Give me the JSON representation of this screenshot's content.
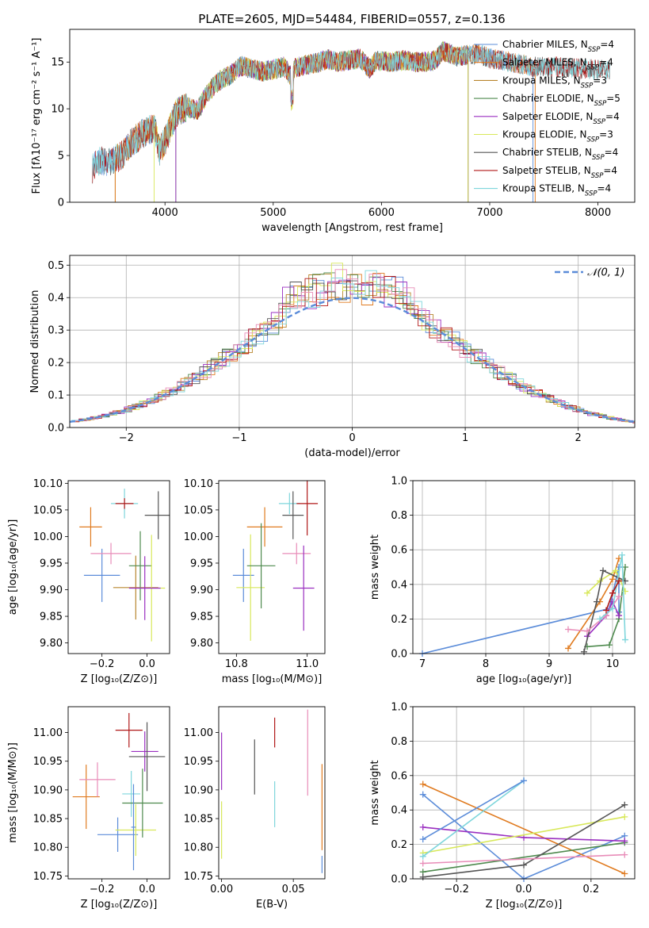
{
  "title": "PLATE=2605, MJD=54484, FIBERID=0557, z=0.136",
  "colors": {
    "Chabrier MILES": "#5b8cd9",
    "Salpeter MILES": "#e07b20",
    "Kroupa MILES": "#b8862e",
    "Chabrier ELODIE": "#4e8a4e",
    "Salpeter ELODIE": "#9a2fc0",
    "Kroupa ELODIE": "#d8e85a",
    "Chabrier STELIB": "#555555",
    "Salpeter STELIB": "#b01818",
    "Kroupa STELIB": "#7fd6dc",
    "pink": "#e88cb8"
  },
  "legend": {
    "items": [
      {
        "text": "Chabrier MILES, N",
        "sub": "SSP",
        "tail": "=4",
        "color": "#5b8cd9"
      },
      {
        "text": "Salpeter MILES, N",
        "sub": "SSP",
        "tail": "=4",
        "color": "#e07b20"
      },
      {
        "text": "Kroupa MILES, N",
        "sub": "SSP",
        "tail": "=3",
        "color": "#b8862e"
      },
      {
        "text": "Chabrier ELODIE, N",
        "sub": "SSP",
        "tail": "=5",
        "color": "#4e8a4e"
      },
      {
        "text": "Salpeter ELODIE, N",
        "sub": "SSP",
        "tail": "=4",
        "color": "#9a2fc0"
      },
      {
        "text": "Kroupa ELODIE, N",
        "sub": "SSP",
        "tail": "=3",
        "color": "#d8e85a"
      },
      {
        "text": "Chabrier STELIB, N",
        "sub": "SSP",
        "tail": "=4",
        "color": "#555555"
      },
      {
        "text": "Salpeter STELIB, N",
        "sub": "SSP",
        "tail": "=4",
        "color": "#b01818"
      },
      {
        "text": "Kroupa STELIB, N",
        "sub": "SSP",
        "tail": "=4",
        "color": "#7fd6dc"
      }
    ]
  },
  "chart_data": [
    {
      "id": "spectrum",
      "type": "line",
      "title": "PLATE=2605, MJD=54484, FIBERID=0557, z=0.136",
      "xlabel": "wavelength [Angstrom, rest frame]",
      "ylabel": "Flux [fλ10⁻¹⁷ erg cm⁻² s⁻¹ A⁻¹]",
      "xlim": [
        3120,
        8340
      ],
      "ylim": [
        0,
        18.5
      ],
      "xticks": [
        4000,
        5000,
        6000,
        7000,
        8000
      ],
      "yticks": [
        0,
        5,
        10,
        15
      ],
      "x_range": [
        3330,
        8110
      ],
      "envelope": [
        [
          3330,
          3.6
        ],
        [
          3400,
          4.5
        ],
        [
          3500,
          4.3
        ],
        [
          3600,
          5.0
        ],
        [
          3700,
          6.5
        ],
        [
          3800,
          7.4
        ],
        [
          3900,
          8.0
        ],
        [
          3950,
          5.5
        ],
        [
          4000,
          6.5
        ],
        [
          4100,
          9.5
        ],
        [
          4200,
          10.2
        ],
        [
          4300,
          9.8
        ],
        [
          4400,
          11.8
        ],
        [
          4500,
          13.0
        ],
        [
          4600,
          13.6
        ],
        [
          4700,
          14.6
        ],
        [
          4800,
          14.3
        ],
        [
          4900,
          14.0
        ],
        [
          5000,
          14.2
        ],
        [
          5100,
          14.5
        ],
        [
          5175,
          13.3
        ],
        [
          5200,
          14.4
        ],
        [
          5300,
          14.7
        ],
        [
          5400,
          14.9
        ],
        [
          5500,
          15.3
        ],
        [
          5600,
          15.0
        ],
        [
          5700,
          15.2
        ],
        [
          5800,
          15.4
        ],
        [
          5890,
          14.3
        ],
        [
          5950,
          15.1
        ],
        [
          6100,
          15.0
        ],
        [
          6200,
          15.2
        ],
        [
          6300,
          15.0
        ],
        [
          6400,
          15.0
        ],
        [
          6500,
          15.2
        ],
        [
          6563,
          16.2
        ],
        [
          6700,
          15.6
        ],
        [
          6800,
          15.8
        ],
        [
          6900,
          15.9
        ],
        [
          7000,
          15.4
        ],
        [
          7200,
          15.0
        ],
        [
          7400,
          14.5
        ],
        [
          7600,
          14.5
        ],
        [
          7800,
          14.3
        ],
        [
          8000,
          14.2
        ],
        [
          8110,
          14.1
        ]
      ],
      "series": [
        {
          "name": "Chabrier MILES, N_SSP=4",
          "range": [
            3330,
            7400
          ]
        },
        {
          "name": "Salpeter MILES, N_SSP=4",
          "range": [
            3540,
            7420
          ]
        },
        {
          "name": "Kroupa MILES, N_SSP=3",
          "range": [
            3540,
            6800
          ]
        },
        {
          "name": "Chabrier ELODIE, N_SSP=5",
          "range": [
            4100,
            6800
          ]
        },
        {
          "name": "Salpeter ELODIE, N_SSP=4",
          "range": [
            4100,
            6800
          ]
        },
        {
          "name": "Kroupa ELODIE, N_SSP=3",
          "range": [
            3900,
            6800
          ]
        },
        {
          "name": "Chabrier STELIB, N_SSP=4",
          "range": [
            3330,
            8110
          ]
        },
        {
          "name": "Salpeter STELIB, N_SSP=4",
          "range": [
            3330,
            8110
          ]
        },
        {
          "name": "Kroupa STELIB, N_SSP=4",
          "range": [
            3330,
            8110
          ]
        }
      ]
    },
    {
      "id": "residuals",
      "type": "line",
      "xlabel": "(data-model)/error",
      "ylabel": "Normed distribution",
      "xlim": [
        -2.5,
        2.5
      ],
      "ylim": [
        0,
        0.53
      ],
      "xticks": [
        -2,
        -1,
        0,
        1,
        2
      ],
      "yticks": [
        0.0,
        0.1,
        0.2,
        0.3,
        0.4,
        0.5
      ],
      "grid": true,
      "legend_label": "𝒩(0, 1)",
      "legend_position": "top-right",
      "gaussian": {
        "mu": 0,
        "sigma": 1
      },
      "bin_width": 0.1
    },
    {
      "id": "age_vs_Z",
      "type": "scatter",
      "xlabel": "Z [log₁₀(Z/Z⊙)]",
      "ylabel": "age  [log₁₀(age/yr)]",
      "xlim": [
        -0.35,
        0.1
      ],
      "ylim": [
        9.78,
        10.105
      ],
      "xticks": [
        -0.2,
        0.0
      ],
      "xticklabels": [
        "−0.2",
        "0.0"
      ],
      "yticks": [
        9.8,
        9.85,
        9.9,
        9.95,
        10.0,
        10.05,
        10.1
      ],
      "points": [
        {
          "x": -0.25,
          "xerr": 0.05,
          "y": 10.018,
          "yerr": 0.037,
          "color": "#e07b20"
        },
        {
          "x": -0.2,
          "xerr": 0.08,
          "y": 9.927,
          "yerr": 0.05,
          "color": "#5b8cd9"
        },
        {
          "x": -0.16,
          "xerr": 0.09,
          "y": 9.968,
          "yerr": 0.02,
          "color": "#e88cb8"
        },
        {
          "x": -0.1,
          "xerr": 0.06,
          "y": 10.062,
          "yerr": 0.028,
          "color": "#7fd6dc"
        },
        {
          "x": -0.05,
          "xerr": 0.1,
          "y": 9.904,
          "yerr": 0.06,
          "color": "#b8862e"
        },
        {
          "x": -0.03,
          "xerr": 0.05,
          "y": 9.945,
          "yerr": 0.065,
          "color": "#4e8a4e"
        },
        {
          "x": 0.02,
          "xerr": 0.06,
          "y": 9.903,
          "yerr": 0.1,
          "color": "#d8e85a"
        },
        {
          "x": 0.05,
          "xerr": 0.06,
          "y": 10.04,
          "yerr": 0.045,
          "color": "#555555"
        },
        {
          "x": -0.1,
          "xerr": 0.04,
          "y": 10.062,
          "yerr": 0.01,
          "color": "#b01818"
        },
        {
          "x": -0.01,
          "xerr": 0.07,
          "y": 9.903,
          "yerr": 0.06,
          "color": "#9a2fc0"
        }
      ]
    },
    {
      "id": "age_vs_mass",
      "type": "scatter",
      "xlabel": "mass [log₁₀(M/M⊙)]",
      "xlim": [
        10.75,
        11.05
      ],
      "ylim": [
        9.78,
        10.105
      ],
      "xticks": [
        10.8,
        11.0
      ],
      "xticklabels": [
        "10.8",
        "11.0"
      ],
      "yticks": [
        9.8,
        9.85,
        9.9,
        9.95,
        10.0,
        10.05,
        10.1
      ],
      "points": [
        {
          "x": 10.88,
          "xerr": 0.05,
          "y": 10.018,
          "yerr": 0.037,
          "color": "#e07b20"
        },
        {
          "x": 10.82,
          "xerr": 0.03,
          "y": 9.927,
          "yerr": 0.05,
          "color": "#5b8cd9"
        },
        {
          "x": 10.97,
          "xerr": 0.04,
          "y": 9.968,
          "yerr": 0.02,
          "color": "#e88cb8"
        },
        {
          "x": 10.95,
          "xerr": 0.03,
          "y": 10.062,
          "yerr": 0.02,
          "color": "#7fd6dc"
        },
        {
          "x": 10.84,
          "xerr": 0.04,
          "y": 9.904,
          "yerr": 0.1,
          "color": "#d8e85a"
        },
        {
          "x": 10.87,
          "xerr": 0.04,
          "y": 9.945,
          "yerr": 0.08,
          "color": "#4e8a4e"
        },
        {
          "x": 10.96,
          "xerr": 0.03,
          "y": 10.04,
          "yerr": 0.045,
          "color": "#555555"
        },
        {
          "x": 11.0,
          "xerr": 0.03,
          "y": 10.062,
          "yerr": 0.06,
          "color": "#b01818"
        },
        {
          "x": 10.99,
          "xerr": 0.03,
          "y": 9.903,
          "yerr": 0.08,
          "color": "#9a2fc0"
        }
      ]
    },
    {
      "id": "weight_vs_age",
      "type": "line",
      "xlabel": "age  [log₁₀(age/yr)]",
      "ylabel": "mass weight",
      "xlim": [
        6.85,
        10.35
      ],
      "ylim": [
        0,
        1.0
      ],
      "xticks": [
        7,
        8,
        9,
        10
      ],
      "yticks": [
        0.0,
        0.2,
        0.4,
        0.6,
        0.8,
        1.0
      ],
      "grid": true,
      "series": [
        {
          "color": "#5b8cd9",
          "points": [
            [
              7.0,
              0.0
            ],
            [
              9.95,
              0.26
            ],
            [
              10.1,
              0.5
            ],
            [
              10.1,
              0.24
            ]
          ]
        },
        {
          "color": "#e07b20",
          "points": [
            [
              9.3,
              0.03
            ],
            [
              9.8,
              0.3
            ],
            [
              10.0,
              0.43
            ],
            [
              10.1,
              0.55
            ]
          ]
        },
        {
          "color": "#4e8a4e",
          "points": [
            [
              9.6,
              0.04
            ],
            [
              9.95,
              0.05
            ],
            [
              10.1,
              0.2
            ],
            [
              10.2,
              0.5
            ]
          ]
        },
        {
          "color": "#9a2fc0",
          "points": [
            [
              9.6,
              0.1
            ],
            [
              9.9,
              0.22
            ],
            [
              10.0,
              0.3
            ],
            [
              10.1,
              0.22
            ]
          ]
        },
        {
          "color": "#d8e85a",
          "points": [
            [
              9.6,
              0.35
            ],
            [
              9.8,
              0.42
            ],
            [
              10.05,
              0.48
            ],
            [
              10.2,
              0.36
            ]
          ]
        },
        {
          "color": "#555555",
          "points": [
            [
              9.55,
              0.01
            ],
            [
              9.75,
              0.3
            ],
            [
              9.85,
              0.48
            ],
            [
              10.2,
              0.42
            ]
          ]
        },
        {
          "color": "#e88cb8",
          "points": [
            [
              9.3,
              0.14
            ],
            [
              9.6,
              0.13
            ],
            [
              9.9,
              0.22
            ],
            [
              10.1,
              0.33
            ]
          ]
        },
        {
          "color": "#7fd6dc",
          "points": [
            [
              9.8,
              0.2
            ],
            [
              10.0,
              0.26
            ],
            [
              10.15,
              0.57
            ],
            [
              10.2,
              0.08
            ]
          ]
        },
        {
          "color": "#b01818",
          "points": [
            [
              9.9,
              0.25
            ],
            [
              10.0,
              0.35
            ],
            [
              10.1,
              0.42
            ]
          ]
        }
      ]
    },
    {
      "id": "mass_vs_Z",
      "type": "scatter",
      "xlabel": "Z [log₁₀(Z/Z⊙)]",
      "ylabel": "mass [log₁₀(M/M⊙)]",
      "xlim": [
        -0.35,
        0.1
      ],
      "ylim": [
        10.745,
        11.045
      ],
      "xticks": [
        -0.2,
        0.0
      ],
      "xticklabels": [
        "−0.2",
        "0.0"
      ],
      "yticks": [
        10.75,
        10.8,
        10.85,
        10.9,
        10.95,
        11.0
      ],
      "points": [
        {
          "x": -0.27,
          "xerr": 0.06,
          "y": 10.888,
          "yerr": 0.056,
          "color": "#e07b20"
        },
        {
          "x": -0.22,
          "xerr": 0.08,
          "y": 10.918,
          "yerr": 0.03,
          "color": "#e88cb8"
        },
        {
          "x": -0.13,
          "xerr": 0.09,
          "y": 10.822,
          "yerr": 0.03,
          "color": "#5b8cd9"
        },
        {
          "x": -0.07,
          "xerr": 0.04,
          "y": 10.893,
          "yerr": 0.04,
          "color": "#7fd6dc"
        },
        {
          "x": -0.08,
          "xerr": 0.06,
          "y": 11.004,
          "yerr": 0.03,
          "color": "#b01818"
        },
        {
          "x": -0.05,
          "xerr": 0.09,
          "y": 10.83,
          "yerr": 0.045,
          "color": "#d8e85a"
        },
        {
          "x": -0.01,
          "xerr": 0.06,
          "y": 10.967,
          "yerr": 0.035,
          "color": "#9a2fc0"
        },
        {
          "x": 0.0,
          "xerr": 0.08,
          "y": 10.958,
          "yerr": 0.06,
          "color": "#555555"
        },
        {
          "x": -0.02,
          "xerr": 0.09,
          "y": 10.877,
          "yerr": 0.06,
          "color": "#4e8a4e"
        },
        {
          "x": -0.06,
          "xerr": 0.01,
          "y": 10.835,
          "yerr": 0.075,
          "color": "#5b8cd9"
        }
      ]
    },
    {
      "id": "mass_vs_ebv",
      "type": "scatter",
      "xlabel": "E(B-V)",
      "xlim": [
        -0.002,
        0.072
      ],
      "ylim": [
        10.745,
        11.045
      ],
      "xticks": [
        0.0,
        0.05
      ],
      "xticklabels": [
        "0.00",
        "0.05"
      ],
      "yticks": [
        10.75,
        10.8,
        10.85,
        10.9,
        10.95,
        11.0
      ],
      "points": [
        {
          "x": 0.0,
          "y": 10.95,
          "yerr": 0.05,
          "color": "#9a2fc0"
        },
        {
          "x": 0.0,
          "y": 10.83,
          "yerr": 0.05,
          "color": "#d8e85a"
        },
        {
          "x": 0.023,
          "y": 10.94,
          "yerr": 0.048,
          "color": "#555555"
        },
        {
          "x": 0.037,
          "y": 11.0,
          "yerr": 0.026,
          "color": "#b01818"
        },
        {
          "x": 0.037,
          "y": 10.875,
          "yerr": 0.04,
          "color": "#7fd6dc"
        },
        {
          "x": 0.06,
          "y": 10.965,
          "yerr": 0.075,
          "color": "#e88cb8"
        },
        {
          "x": 0.07,
          "y": 10.87,
          "yerr": 0.075,
          "color": "#e07b20"
        },
        {
          "x": 0.07,
          "y": 10.77,
          "yerr": 0.015,
          "color": "#5b8cd9"
        }
      ]
    },
    {
      "id": "weight_vs_Z",
      "type": "line",
      "xlabel": "Z [log₁₀(Z/Z⊙)]",
      "ylabel": "mass weight",
      "xlim": [
        -0.33,
        0.33
      ],
      "ylim": [
        0,
        1.0
      ],
      "xticks": [
        -0.2,
        0.0,
        0.2
      ],
      "xticklabels": [
        "−0.2",
        "0.0",
        "0.2"
      ],
      "yticks": [
        0.0,
        0.2,
        0.4,
        0.6,
        0.8,
        1.0
      ],
      "grid": true,
      "series": [
        {
          "color": "#5b8cd9",
          "points": [
            [
              -0.3,
              0.49
            ],
            [
              0.0,
              0.0
            ],
            [
              0.3,
              0.25
            ]
          ]
        },
        {
          "color": "#e07b20",
          "points": [
            [
              -0.3,
              0.55
            ],
            [
              0.3,
              0.03
            ]
          ]
        },
        {
          "color": "#4e8a4e",
          "points": [
            [
              -0.3,
              0.04
            ],
            [
              0.3,
              0.21
            ]
          ]
        },
        {
          "color": "#9a2fc0",
          "points": [
            [
              -0.3,
              0.3
            ],
            [
              0.0,
              0.24
            ],
            [
              0.3,
              0.22
            ]
          ]
        },
        {
          "color": "#d8e85a",
          "points": [
            [
              -0.3,
              0.15
            ],
            [
              0.3,
              0.36
            ]
          ]
        },
        {
          "color": "#555555",
          "points": [
            [
              -0.3,
              0.01
            ],
            [
              0.0,
              0.08
            ],
            [
              0.3,
              0.43
            ]
          ]
        },
        {
          "color": "#e88cb8",
          "points": [
            [
              -0.3,
              0.09
            ],
            [
              0.3,
              0.14
            ]
          ]
        },
        {
          "color": "#7fd6dc",
          "points": [
            [
              -0.3,
              0.13
            ],
            [
              0.0,
              0.57
            ]
          ]
        },
        {
          "color": "#5b8cd9",
          "points": [
            [
              -0.3,
              0.23
            ],
            [
              0.0,
              0.57
            ]
          ]
        }
      ]
    }
  ]
}
